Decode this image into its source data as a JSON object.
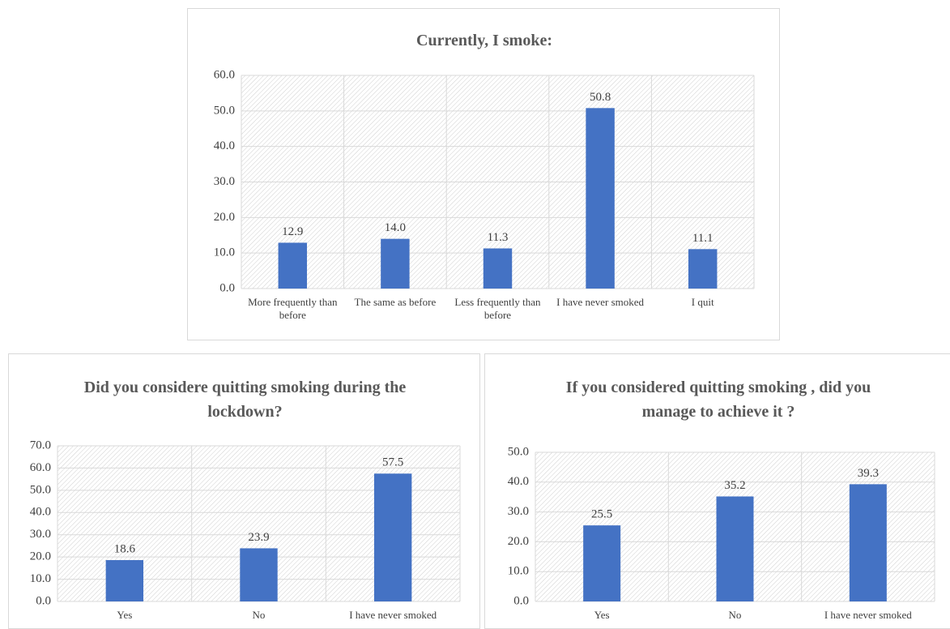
{
  "chart_data": [
    {
      "type": "bar",
      "title": "Currently, I smoke:",
      "categories": [
        "More frequently than before",
        "The same as before",
        "Less frequently than before",
        "I have never smoked",
        "I quit"
      ],
      "values": [
        12.9,
        14.0,
        11.3,
        50.8,
        11.1
      ],
      "value_labels": [
        "12.9",
        "14.0",
        "11.3",
        "50.8",
        "11.1"
      ],
      "color": "#4472c4",
      "ylim": [
        0,
        60
      ],
      "yticks": [
        {
          "value": 0,
          "label": "0.0"
        },
        {
          "value": 10,
          "label": "10.0"
        },
        {
          "value": 20,
          "label": "20.0"
        },
        {
          "value": 30,
          "label": "30.0"
        },
        {
          "value": 40,
          "label": "40.0"
        },
        {
          "value": 50,
          "label": "50.0"
        },
        {
          "value": 60,
          "label": "60.0"
        }
      ],
      "grid": true
    },
    {
      "type": "bar",
      "title": "Did you considere quitting smoking during the lockdown?",
      "categories": [
        "Yes",
        "No",
        "I have never smoked"
      ],
      "values": [
        18.6,
        23.9,
        57.5
      ],
      "value_labels": [
        "18.6",
        "23.9",
        "57.5"
      ],
      "color": "#4472c4",
      "ylim": [
        0,
        70
      ],
      "yticks": [
        {
          "value": 0,
          "label": "0.0"
        },
        {
          "value": 10,
          "label": "10.0"
        },
        {
          "value": 20,
          "label": "20.0"
        },
        {
          "value": 30,
          "label": "30.0"
        },
        {
          "value": 40,
          "label": "40.0"
        },
        {
          "value": 50,
          "label": "50.0"
        },
        {
          "value": 60,
          "label": "60.0"
        },
        {
          "value": 70,
          "label": "70.0"
        }
      ],
      "grid": true
    },
    {
      "type": "bar",
      "title": "If you considered quitting smoking , did you manage to achieve it ?",
      "categories": [
        "Yes",
        "No",
        "I have never smoked"
      ],
      "values": [
        25.5,
        35.2,
        39.3
      ],
      "value_labels": [
        "25.5",
        "35.2",
        "39.3"
      ],
      "color": "#4472c4",
      "ylim": [
        0,
        50
      ],
      "yticks": [
        {
          "value": 0,
          "label": "0.0"
        },
        {
          "value": 10,
          "label": "10.0"
        },
        {
          "value": 20,
          "label": "20.0"
        },
        {
          "value": 30,
          "label": "30.0"
        },
        {
          "value": 40,
          "label": "40.0"
        },
        {
          "value": 50,
          "label": "50.0"
        }
      ],
      "grid": true
    }
  ]
}
